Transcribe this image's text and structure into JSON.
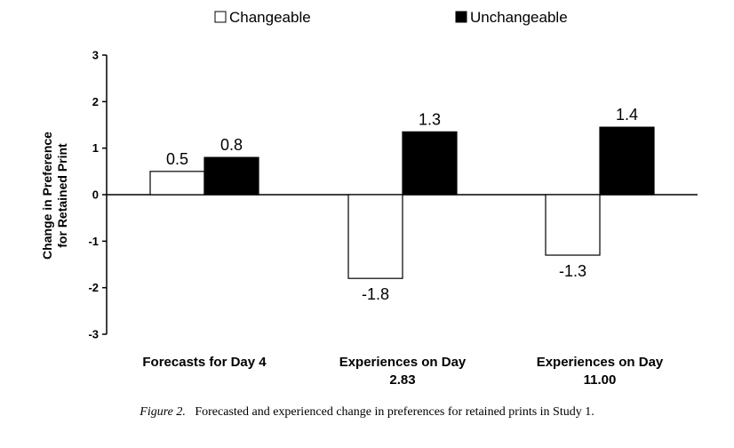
{
  "chart_data": {
    "type": "bar",
    "categories": [
      [
        "Forecasts for Day 4"
      ],
      [
        "Experiences on Day",
        "2.83"
      ],
      [
        "Experiences on Day",
        "11.00"
      ]
    ],
    "series": [
      {
        "name": "Changeable",
        "values": [
          0.5,
          -1.8,
          -1.3
        ],
        "labels": [
          "0.5",
          "-1.8",
          "-1.3"
        ],
        "fill": "#ffffff"
      },
      {
        "name": "Unchangeable",
        "values": [
          0.8,
          1.35,
          1.45
        ],
        "labels": [
          "0.8",
          "1.3",
          "1.4"
        ],
        "fill": "#000000"
      }
    ],
    "ylabel": [
      "Change in Preference",
      "for Retained Print"
    ],
    "ylim": [
      -3,
      3
    ],
    "yticks": [
      3,
      2,
      1,
      0,
      -1,
      -2,
      -3
    ],
    "legend": "top",
    "grid": false
  },
  "caption": {
    "figure_label": "Figure 2.",
    "text": "Forecasted and experienced change in preferences for retained prints in Study 1."
  }
}
